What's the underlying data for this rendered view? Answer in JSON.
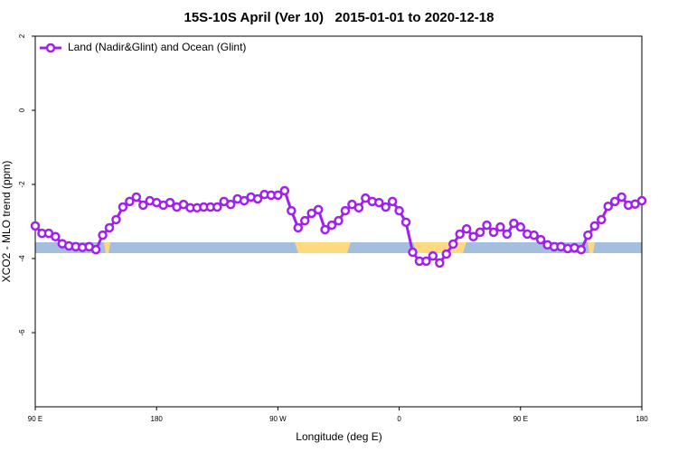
{
  "chart_data": {
    "type": "line",
    "title": "15S-10S April (Ver 10)   2015-01-01 to 2020-12-18",
    "x_label": "Longitude (deg E)",
    "y_label": "XCO2 - MLO trend (ppm)",
    "xlim": [
      90,
      540
    ],
    "xticks": [
      {
        "value": 90,
        "label": "90 E"
      },
      180,
      {
        "value": 270,
        "label": "90 W"
      },
      {
        "value": 360,
        "label": "0"
      },
      {
        "value": 450,
        "label": "90 E"
      },
      {
        "value": 540,
        "label": "180"
      }
    ],
    "ylim": [
      -8,
      2
    ],
    "yticks": [
      2,
      0,
      -2,
      -4,
      -6
    ],
    "legend": "top-left",
    "x": [
      90,
      95,
      100,
      105,
      110,
      115,
      120,
      125,
      130,
      135,
      140,
      145,
      150,
      155,
      160,
      165,
      170,
      175,
      180,
      185,
      190,
      195,
      200,
      205,
      210,
      215,
      220,
      225,
      230,
      235,
      240,
      245,
      250,
      255,
      260,
      265,
      270,
      275,
      280,
      285,
      290,
      295,
      300,
      305,
      310,
      315,
      320,
      325,
      330,
      335,
      340,
      345,
      350,
      355,
      360,
      365,
      370,
      375,
      380,
      385,
      390,
      395,
      400,
      405,
      410,
      415,
      420,
      425,
      430,
      435,
      440,
      445,
      450,
      455,
      460,
      465,
      470,
      475,
      480,
      485,
      490,
      495,
      500,
      505,
      510,
      515,
      520,
      525,
      530,
      535,
      540
    ],
    "series": [
      {
        "name": "Land (Nadir&Glint) and Ocean (Glint)",
        "color": "#a020f0",
        "values": [
          -3.12,
          -3.32,
          -3.32,
          -3.41,
          -3.6,
          -3.66,
          -3.68,
          -3.7,
          -3.68,
          -3.76,
          -3.37,
          -3.17,
          -2.95,
          -2.61,
          -2.46,
          -2.34,
          -2.56,
          -2.44,
          -2.49,
          -2.56,
          -2.49,
          -2.61,
          -2.54,
          -2.63,
          -2.63,
          -2.61,
          -2.61,
          -2.61,
          -2.46,
          -2.54,
          -2.39,
          -2.44,
          -2.34,
          -2.39,
          -2.27,
          -2.29,
          -2.29,
          -2.17,
          -2.71,
          -3.17,
          -2.98,
          -2.78,
          -2.68,
          -3.22,
          -3.1,
          -2.98,
          -2.71,
          -2.54,
          -2.63,
          -2.37,
          -2.46,
          -2.49,
          -2.61,
          -2.46,
          -2.71,
          -3.02,
          -3.83,
          -4.07,
          -4.07,
          -3.93,
          -4.12,
          -3.88,
          -3.61,
          -3.34,
          -3.2,
          -3.41,
          -3.29,
          -3.1,
          -3.29,
          -3.15,
          -3.34,
          -3.05,
          -3.15,
          -3.34,
          -3.37,
          -3.49,
          -3.63,
          -3.68,
          -3.68,
          -3.73,
          -3.71,
          -3.76,
          -3.37,
          -3.12,
          -2.95,
          -2.59,
          -2.46,
          -2.34,
          -2.56,
          -2.53,
          -2.44
        ]
      }
    ]
  }
}
